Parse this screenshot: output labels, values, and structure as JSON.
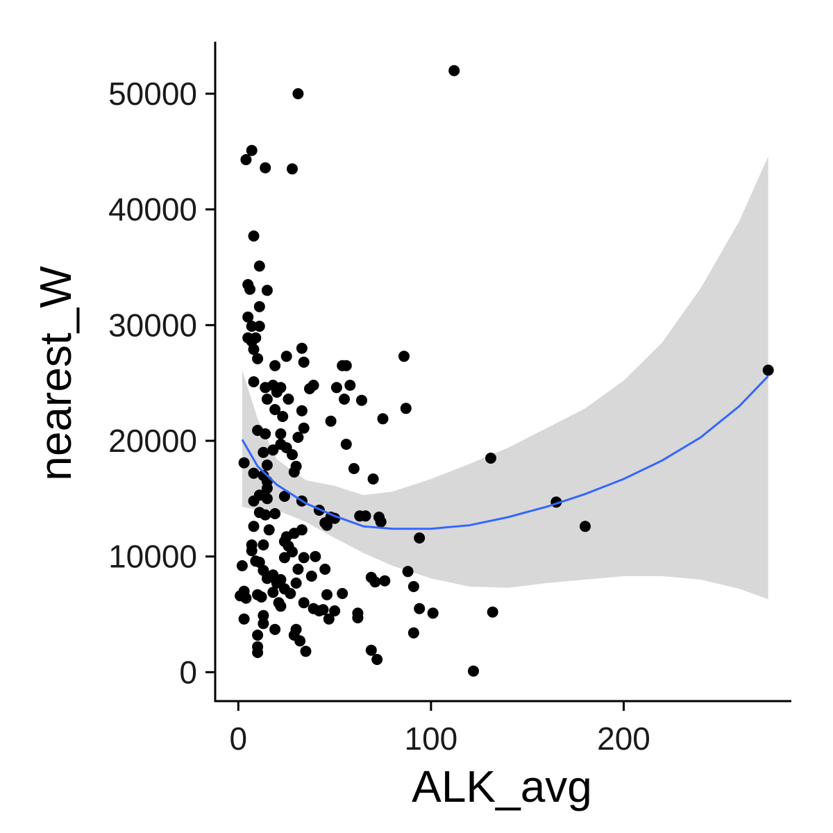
{
  "chart_data": {
    "type": "scatter",
    "title": "",
    "xlabel": "ALK_avg",
    "ylabel": "nearest_W",
    "xlim": [
      -12,
      287
    ],
    "ylim": [
      -2500,
      54500
    ],
    "x_ticks": [
      0,
      100,
      200
    ],
    "y_ticks": [
      0,
      10000,
      20000,
      30000,
      40000,
      50000
    ],
    "grid": false,
    "legend": "none",
    "colors": {
      "points": "#000000",
      "smooth_line": "#3366FF",
      "ribbon": "#d4d4d4"
    },
    "points": [
      [
        112,
        52000
      ],
      [
        31,
        50000
      ],
      [
        7,
        45100
      ],
      [
        4,
        44300
      ],
      [
        14,
        43600
      ],
      [
        28,
        43500
      ],
      [
        8,
        37700
      ],
      [
        11,
        35100
      ],
      [
        5,
        33500
      ],
      [
        6,
        33100
      ],
      [
        15,
        33000
      ],
      [
        11,
        31600
      ],
      [
        5,
        30700
      ],
      [
        7,
        29900
      ],
      [
        11,
        29900
      ],
      [
        5,
        28900
      ],
      [
        7,
        28600
      ],
      [
        9,
        28900
      ],
      [
        8,
        27900
      ],
      [
        10,
        27100
      ],
      [
        33,
        28000
      ],
      [
        25,
        27300
      ],
      [
        34,
        26800
      ],
      [
        86,
        27300
      ],
      [
        54,
        26500
      ],
      [
        56,
        26500
      ],
      [
        19,
        26500
      ],
      [
        8,
        25100
      ],
      [
        14,
        24600
      ],
      [
        18,
        24800
      ],
      [
        20,
        24200
      ],
      [
        22,
        24600
      ],
      [
        39,
        24800
      ],
      [
        37,
        24500
      ],
      [
        51,
        24600
      ],
      [
        58,
        24800
      ],
      [
        15,
        23600
      ],
      [
        26,
        23600
      ],
      [
        55,
        23600
      ],
      [
        64,
        23500
      ],
      [
        87,
        22800
      ],
      [
        19,
        22700
      ],
      [
        23,
        22100
      ],
      [
        33,
        22600
      ],
      [
        75,
        21900
      ],
      [
        48,
        21700
      ],
      [
        10,
        20900
      ],
      [
        14,
        20600
      ],
      [
        34,
        21100
      ],
      [
        22,
        20600
      ],
      [
        31,
        20300
      ],
      [
        22,
        19700
      ],
      [
        56,
        19700
      ],
      [
        25,
        19400
      ],
      [
        13,
        19000
      ],
      [
        18,
        19200
      ],
      [
        28,
        18800
      ],
      [
        3,
        18100
      ],
      [
        15,
        17900
      ],
      [
        30,
        17800
      ],
      [
        60,
        17600
      ],
      [
        8,
        17200
      ],
      [
        13,
        17000
      ],
      [
        29,
        17300
      ],
      [
        70,
        16700
      ],
      [
        15,
        16500
      ],
      [
        15,
        15900
      ],
      [
        11,
        15300
      ],
      [
        24,
        15200
      ],
      [
        8,
        14800
      ],
      [
        15,
        15000
      ],
      [
        33,
        14800
      ],
      [
        11,
        13800
      ],
      [
        14,
        13600
      ],
      [
        19,
        13700
      ],
      [
        42,
        14000
      ],
      [
        48,
        13400
      ],
      [
        50,
        13300
      ],
      [
        63,
        13500
      ],
      [
        66,
        13500
      ],
      [
        73,
        13400
      ],
      [
        74,
        13000
      ],
      [
        46,
        12700
      ],
      [
        45,
        12900
      ],
      [
        8,
        12600
      ],
      [
        131,
        18500
      ],
      [
        165,
        14700
      ],
      [
        180,
        12600
      ],
      [
        16,
        12300
      ],
      [
        33,
        12300
      ],
      [
        29,
        12000
      ],
      [
        25,
        11700
      ],
      [
        24,
        11300
      ],
      [
        94,
        11600
      ],
      [
        7,
        11000
      ],
      [
        13,
        11000
      ],
      [
        26,
        10900
      ],
      [
        7,
        10500
      ],
      [
        28,
        10400
      ],
      [
        34,
        9900
      ],
      [
        40,
        10000
      ],
      [
        24,
        9900
      ],
      [
        9,
        9600
      ],
      [
        11,
        9500
      ],
      [
        2,
        9200
      ],
      [
        13,
        8800
      ],
      [
        45,
        8900
      ],
      [
        31,
        8900
      ],
      [
        18,
        8400
      ],
      [
        22,
        8000
      ],
      [
        38,
        8300
      ],
      [
        15,
        8100
      ],
      [
        69,
        8200
      ],
      [
        71,
        7800
      ],
      [
        76,
        7900
      ],
      [
        88,
        8700
      ],
      [
        20,
        7700
      ],
      [
        30,
        7700
      ],
      [
        24,
        7200
      ],
      [
        91,
        7400
      ],
      [
        3,
        7000
      ],
      [
        18,
        6900
      ],
      [
        27,
        6800
      ],
      [
        10,
        6700
      ],
      [
        1,
        6600
      ],
      [
        4,
        6400
      ],
      [
        12,
        6500
      ],
      [
        46,
        6700
      ],
      [
        54,
        6800
      ],
      [
        34,
        6000
      ],
      [
        21,
        6000
      ],
      [
        22,
        5700
      ],
      [
        39,
        5500
      ],
      [
        44,
        5400
      ],
      [
        50,
        5300
      ],
      [
        62,
        5100
      ],
      [
        42,
        5300
      ],
      [
        94,
        5500
      ],
      [
        101,
        5100
      ],
      [
        132,
        5200
      ],
      [
        13,
        4900
      ],
      [
        3,
        4600
      ],
      [
        47,
        4600
      ],
      [
        62,
        4700
      ],
      [
        13,
        4200
      ],
      [
        19,
        3700
      ],
      [
        30,
        3700
      ],
      [
        10,
        3200
      ],
      [
        29,
        3200
      ],
      [
        91,
        3400
      ],
      [
        32,
        2700
      ],
      [
        10,
        2200
      ],
      [
        10,
        1700
      ],
      [
        35,
        1800
      ],
      [
        69,
        1900
      ],
      [
        72,
        1100
      ],
      [
        122,
        100
      ],
      [
        275,
        26100
      ]
    ],
    "smooth": {
      "x": [
        2,
        10,
        20,
        35,
        50,
        65,
        80,
        100,
        120,
        140,
        160,
        180,
        200,
        220,
        240,
        260,
        275
      ],
      "y": [
        20100,
        17800,
        16200,
        14600,
        13500,
        12600,
        12400,
        12400,
        12700,
        13400,
        14300,
        15400,
        16700,
        18300,
        20300,
        23000,
        25600
      ],
      "ymin": [
        14300,
        14000,
        14000,
        13000,
        11600,
        10300,
        9200,
        8100,
        7400,
        7300,
        7700,
        8000,
        8300,
        8300,
        8000,
        7200,
        6300
      ],
      "ymax": [
        26100,
        21900,
        18400,
        16600,
        16100,
        15300,
        15600,
        16700,
        18000,
        19400,
        21100,
        22800,
        25200,
        28500,
        33200,
        39000,
        44600
      ]
    }
  }
}
